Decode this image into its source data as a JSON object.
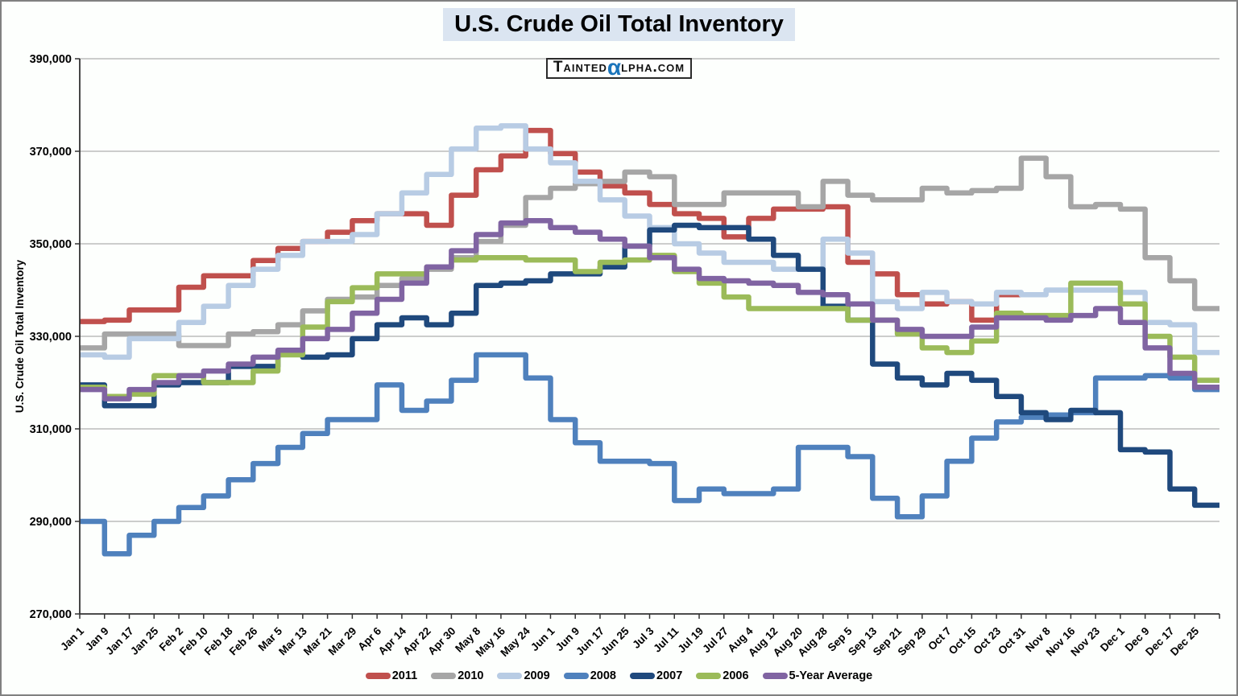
{
  "title": "U.S. Crude Oil Total Inventory",
  "logo": {
    "prefix": "Tainted",
    "alpha": "α",
    "suffix": "lpha.com"
  },
  "chart_data": {
    "type": "line",
    "line_style": "step",
    "title": "U.S. Crude Oil Total Inventory",
    "xlabel": "",
    "ylabel": "U.S. Crude Oil Total Inventory",
    "ylim": [
      270000,
      390000
    ],
    "y_tick_step": 20000,
    "y_tick_labels": [
      "390,000",
      "370,000",
      "350,000",
      "330,000",
      "310,000",
      "290,000",
      "270,000"
    ],
    "grid": true,
    "legend_position": "bottom",
    "categories": [
      "Jan 1",
      "Jan 9",
      "Jan 17",
      "Jan 25",
      "Feb 2",
      "Feb 10",
      "Feb 18",
      "Feb 26",
      "Mar 5",
      "Mar 13",
      "Mar 21",
      "Mar 29",
      "Apr 6",
      "Apr 14",
      "Apr 22",
      "Apr 30",
      "May 8",
      "May 16",
      "May 24",
      "Jun 1",
      "Jun 9",
      "Jun 17",
      "Jun 25",
      "Jul 3",
      "Jul 11",
      "Jul 19",
      "Jul 27",
      "Aug 4",
      "Aug 12",
      "Aug 20",
      "Aug 28",
      "Sep 5",
      "Sep 13",
      "Sep 21",
      "Sep 29",
      "Oct 7",
      "Oct 15",
      "Oct 23",
      "Oct 31",
      "Nov 8",
      "Nov 16",
      "Nov 23",
      "Dec 1",
      "Dec 9",
      "Dec 17",
      "Dec 25"
    ],
    "series": [
      {
        "name": "2011",
        "color": "#C0504D",
        "values": [
          333200,
          333500,
          335700,
          335700,
          340600,
          343100,
          343100,
          346400,
          349000,
          350500,
          352500,
          355000,
          356500,
          356500,
          354000,
          360500,
          366000,
          369000,
          374500,
          369500,
          365500,
          362500,
          361000,
          358500,
          356500,
          355500,
          351500,
          355500,
          357500,
          357500,
          358000,
          346000,
          343500,
          339000,
          337000,
          337500,
          333500,
          339000,
          null,
          null,
          null,
          null,
          null,
          null,
          null,
          null
        ]
      },
      {
        "name": "2010",
        "color": "#A6A6A6",
        "values": [
          327500,
          330500,
          330500,
          330500,
          328000,
          328000,
          330500,
          331000,
          332500,
          335500,
          338000,
          338500,
          341000,
          342500,
          344500,
          347000,
          350500,
          354000,
          360000,
          362000,
          363000,
          363500,
          365500,
          364500,
          358500,
          358500,
          361000,
          361000,
          361000,
          358000,
          363500,
          360500,
          359500,
          359500,
          362000,
          361000,
          361500,
          362000,
          368500,
          364500,
          358000,
          358500,
          357500,
          347000,
          342000,
          336000
        ]
      },
      {
        "name": "2009",
        "color": "#B8CCE4",
        "values": [
          326000,
          325500,
          329500,
          329500,
          333000,
          336500,
          341000,
          344500,
          347500,
          350500,
          350500,
          352000,
          356500,
          361000,
          365000,
          370500,
          375000,
          375500,
          370500,
          367500,
          363500,
          359500,
          356000,
          353500,
          350000,
          348000,
          346000,
          346000,
          344500,
          344500,
          351000,
          348000,
          337500,
          336000,
          339500,
          337500,
          337000,
          339500,
          339000,
          340000,
          340000,
          340000,
          339500,
          333000,
          332500,
          326500
        ]
      },
      {
        "name": "2008",
        "color": "#4F81BD",
        "values": [
          290000,
          283000,
          287000,
          290000,
          293000,
          295500,
          299000,
          302500,
          306000,
          309000,
          312000,
          312000,
          319500,
          314000,
          316000,
          320500,
          326000,
          326000,
          321000,
          312000,
          307000,
          303000,
          303000,
          302500,
          294500,
          297000,
          296000,
          296000,
          297000,
          306000,
          306000,
          304000,
          295000,
          291000,
          295500,
          303000,
          308000,
          311500,
          312500,
          313000,
          313500,
          321000,
          321000,
          321500,
          321000,
          318500
        ]
      },
      {
        "name": "2007",
        "color": "#1F497D",
        "values": [
          319500,
          315000,
          315000,
          319500,
          320000,
          320000,
          323500,
          323500,
          326500,
          325500,
          326000,
          329500,
          332500,
          334000,
          332500,
          335000,
          341000,
          341500,
          342000,
          343500,
          343500,
          345000,
          349500,
          353000,
          354000,
          353500,
          353500,
          351000,
          347500,
          344500,
          336500,
          333500,
          324000,
          321000,
          319500,
          322000,
          320500,
          317000,
          313500,
          312000,
          314000,
          313500,
          305500,
          305000,
          297000,
          293500
        ]
      },
      {
        "name": "2006",
        "color": "#9BBB59",
        "values": [
          319000,
          317000,
          317500,
          321500,
          321500,
          320000,
          320000,
          322500,
          326000,
          332000,
          337500,
          340500,
          343500,
          343500,
          345000,
          346500,
          347000,
          347000,
          346500,
          346500,
          344000,
          346000,
          346500,
          347500,
          344000,
          341500,
          338500,
          336000,
          336000,
          336000,
          336000,
          333500,
          333500,
          330500,
          327500,
          326500,
          329000,
          335000,
          334500,
          334500,
          341500,
          341500,
          337000,
          330000,
          325500,
          320500
        ]
      },
      {
        "name": "5-Year Average",
        "color": "#8064A2",
        "values": [
          318500,
          316500,
          318500,
          320000,
          321500,
          322500,
          324000,
          325500,
          327000,
          329500,
          331500,
          335000,
          338000,
          341500,
          345000,
          348500,
          352000,
          354500,
          355000,
          353500,
          352500,
          351000,
          349500,
          347000,
          344500,
          342500,
          342000,
          341500,
          341000,
          339500,
          339000,
          337000,
          333500,
          331500,
          330000,
          330000,
          332000,
          334000,
          334000,
          333500,
          334500,
          336000,
          333000,
          327500,
          322000,
          319000
        ]
      }
    ]
  }
}
